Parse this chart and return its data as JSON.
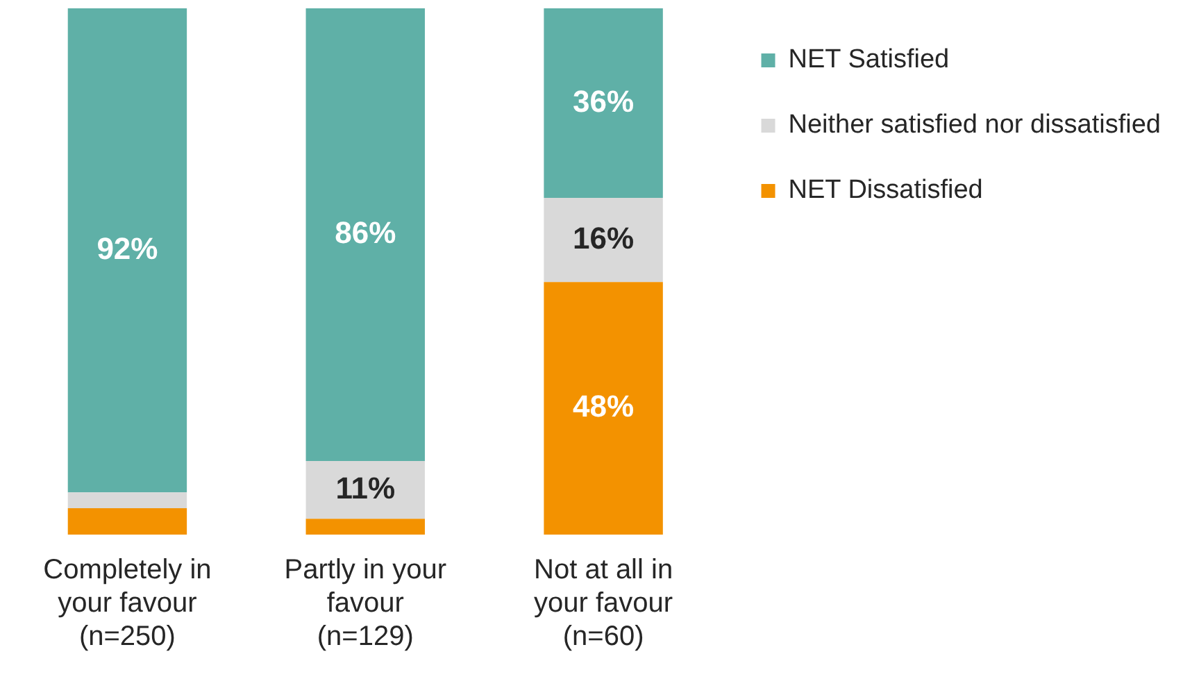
{
  "chart_data": {
    "type": "bar",
    "stacked": true,
    "categories": [
      "Completely in your favour (n=250)",
      "Partly in your favour (n=129)",
      "Not at all in your favour (n=60)"
    ],
    "series": [
      {
        "name": "NET Dissatisfied",
        "color": "#f39200",
        "values": [
          5,
          3,
          48
        ],
        "value_labels": [
          null,
          null,
          "48%"
        ]
      },
      {
        "name": "Neither satisfied nor dissatisfied",
        "color": "#d9d9d9",
        "values": [
          3,
          11,
          16
        ],
        "value_labels": [
          null,
          "11%",
          "16%"
        ]
      },
      {
        "name": "NET Satisfied",
        "color": "#5fb0a7",
        "values": [
          92,
          86,
          36
        ],
        "value_labels": [
          "92%",
          "86%",
          "36%"
        ]
      }
    ],
    "ylim": [
      0,
      100
    ],
    "tick_labels": "x",
    "legend": "right",
    "grid": false
  }
}
